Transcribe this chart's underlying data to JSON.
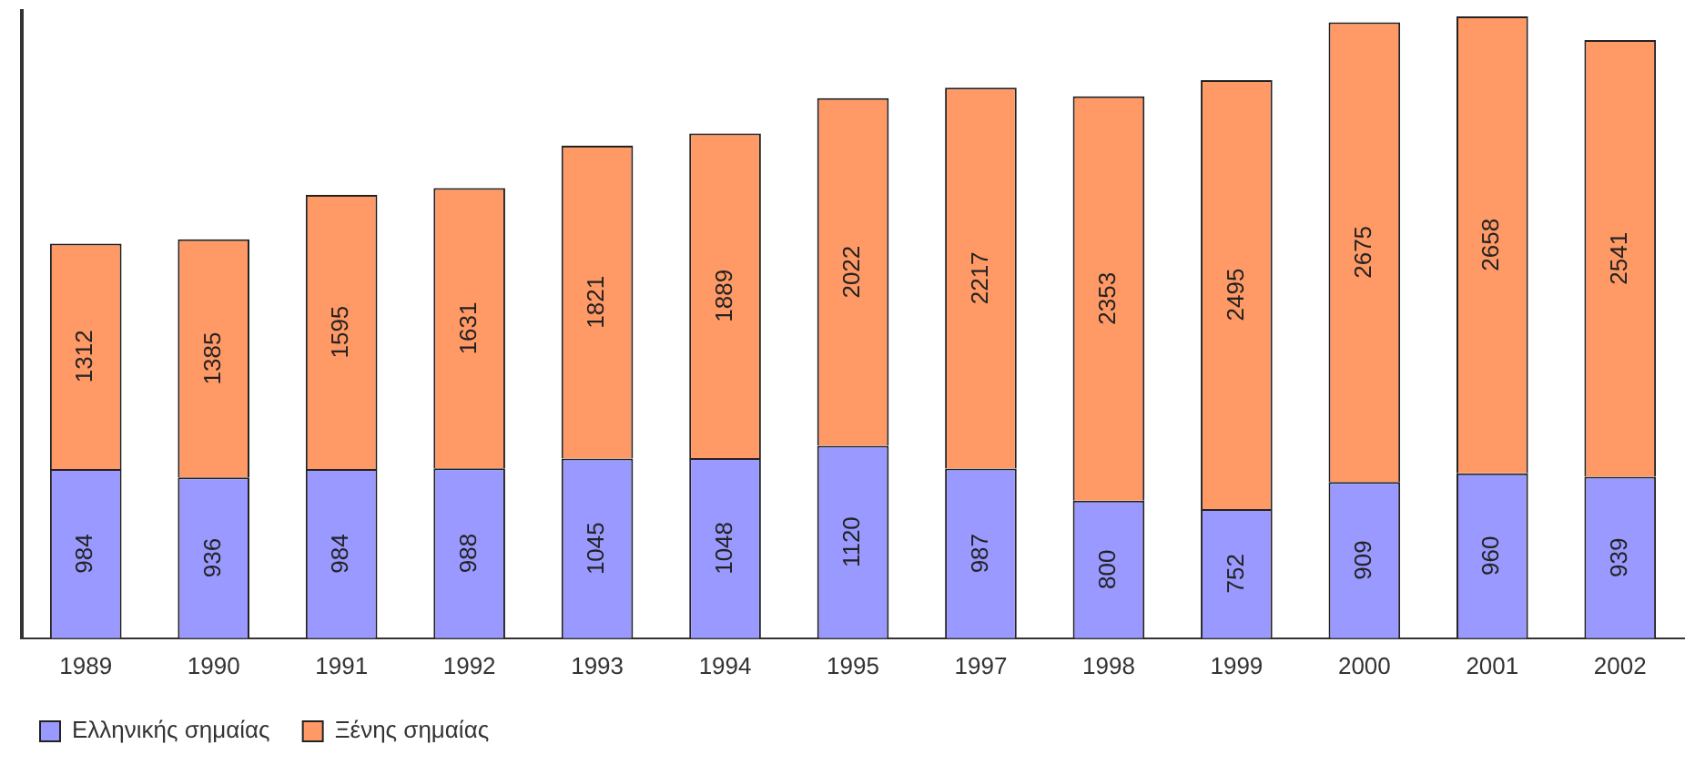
{
  "chart_data": {
    "type": "bar",
    "stacked": true,
    "categories": [
      "1989",
      "1990",
      "1991",
      "1992",
      "1993",
      "1994",
      "1995",
      "1997",
      "1998",
      "1999",
      "2000",
      "2001",
      "2002"
    ],
    "series": [
      {
        "name": "Ελληνικής σημαίας",
        "color": "#9999ff",
        "values": [
          984,
          936,
          984,
          988,
          1045,
          1048,
          1120,
          987,
          800,
          752,
          909,
          960,
          939
        ]
      },
      {
        "name": "Ξένης σημαίας",
        "color": "#ff9966",
        "values": [
          1312,
          1385,
          1595,
          1631,
          1821,
          1889,
          2022,
          2217,
          2353,
          2495,
          2675,
          2658,
          2541
        ]
      }
    ],
    "ylim": [
      0,
      3650
    ],
    "tick_labels": "x",
    "data_labels": true,
    "grid": false,
    "legend": "bottom left"
  }
}
